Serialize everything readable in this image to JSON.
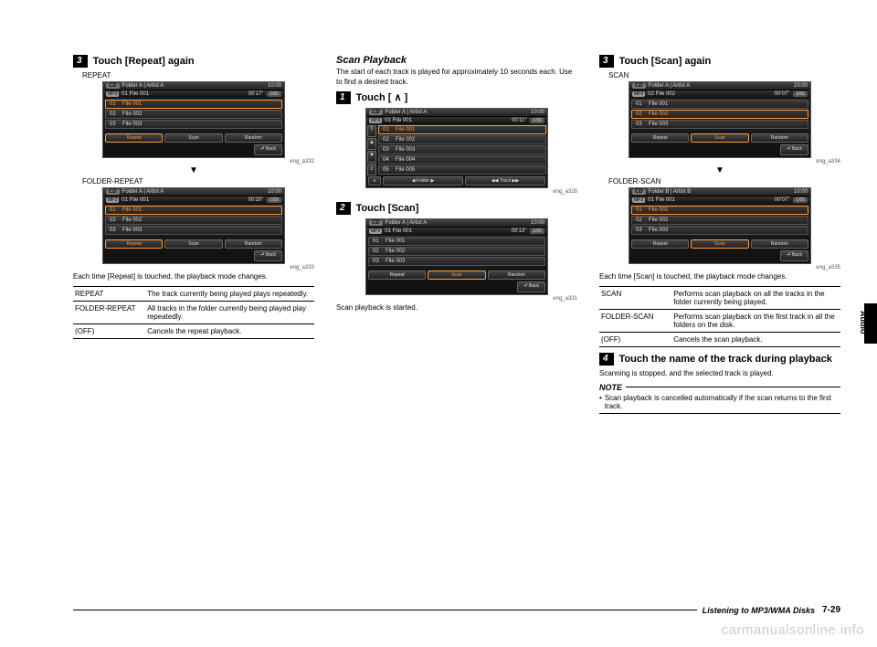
{
  "footer": {
    "section": "Listening to MP3/WMA Disks",
    "page": "7-29"
  },
  "sidetab": "Audio",
  "watermark": "carmanualsonline.info",
  "col1": {
    "step3": {
      "num": "3",
      "title": "Touch [Repeat] again"
    },
    "cap1": "REPEAT",
    "cap2": "FOLDER-REPEAT",
    "ref1": "eng_a332",
    "ref2": "eng_a333",
    "explain": "Each time [Repeat] is touched, the playback mode changes.",
    "table": [
      [
        "REPEAT",
        "The track currently being played plays repeatedly."
      ],
      [
        "FOLDER-REPEAT",
        "All tracks in the folder currently being played play repeatedly."
      ],
      [
        "(OFF)",
        "Cancels the repeat playback."
      ]
    ],
    "screenA": {
      "disc": "CD",
      "mp3": "MP3",
      "folder": "Folder A",
      "artist": "Artist A",
      "nowtrk": "01 File 001",
      "time": "00'17\"",
      "clock": "10:00",
      "mode": "1/55",
      "tracks": [
        [
          "01",
          "File 001"
        ],
        [
          "02",
          "File 002"
        ],
        [
          "03",
          "File 003"
        ]
      ],
      "btns": [
        "Repeat",
        "Scan",
        "Random"
      ],
      "on": 0,
      "back": "Back"
    },
    "screenB": {
      "disc": "CD",
      "mp3": "MP3",
      "folder": "Folder A",
      "artist": "Artist A",
      "nowtrk": "01 File 001",
      "time": "00'20\"",
      "clock": "10:00",
      "mode": "1/55",
      "tracks": [
        [
          "01",
          "File 001"
        ],
        [
          "02",
          "File 002"
        ],
        [
          "03",
          "File 003"
        ]
      ],
      "btns": [
        "Repeat",
        "Scan",
        "Random"
      ],
      "on": 0,
      "back": "Back"
    }
  },
  "col2": {
    "heading": "Scan Playback",
    "intro": "The start of each track is played for approximately 10 seconds each. Use to find a desired track.",
    "step1": {
      "num": "1",
      "title": "Touch [ ∧ ]"
    },
    "ref1": "eng_a328",
    "step2": {
      "num": "2",
      "title": "Touch [Scan]"
    },
    "ref2": "eng_a331",
    "outro": "Scan playback is started.",
    "screenA": {
      "disc": "CD",
      "mp3": "MP3",
      "folder": "Folder A",
      "artist": "Artist A",
      "nowtrk": "01 File 001",
      "time": "00'11\"",
      "clock": "10:00",
      "mode": "1/55",
      "tracks": [
        [
          "01",
          "File 001"
        ],
        [
          "02",
          "File 002"
        ],
        [
          "03",
          "File 003"
        ],
        [
          "04",
          "File 004"
        ],
        [
          "05",
          "File 005"
        ]
      ],
      "footerLabels": [
        "∧",
        "◀ Folder ▶",
        "◀◀ Track ▶▶"
      ]
    },
    "screenB": {
      "disc": "CD",
      "mp3": "MP3",
      "folder": "Folder A",
      "artist": "Artist A",
      "nowtrk": "01 File 001",
      "time": "00'13\"",
      "clock": "10:00",
      "mode": "1/55",
      "tracks": [
        [
          "01",
          "File 001"
        ],
        [
          "02",
          "File 002"
        ],
        [
          "03",
          "File 003"
        ]
      ],
      "btns": [
        "Repeat",
        "Scan",
        "Random"
      ],
      "on": 1,
      "back": "Back"
    }
  },
  "col3": {
    "step3": {
      "num": "3",
      "title": "Touch [Scan] again"
    },
    "cap1": "SCAN",
    "cap2": "FOLDER-SCAN",
    "ref1": "eng_a334",
    "ref2": "eng_a335",
    "explain": "Each time [Scan] is touched, the playback mode changes.",
    "table": [
      [
        "SCAN",
        "Performs scan playback on all the tracks in the folder currently being played."
      ],
      [
        "FOLDER-SCAN",
        "Performs scan playback on the first track in all the folders on the disk."
      ],
      [
        "(OFF)",
        "Cancels the scan playback."
      ]
    ],
    "step4": {
      "num": "4",
      "title": "Touch the name of the track during playback"
    },
    "step4text": "Scanning is stopped, and the selected track is played.",
    "noteTitle": "NOTE",
    "note": "Scan playback is cancelled automatically if the scan returns to the first track.",
    "screenA": {
      "disc": "CD",
      "mp3": "MP3",
      "folder": "Folder A",
      "artist": "Artist A",
      "nowtrk": "02 File 002",
      "time": "00'07\"",
      "clock": "10:00",
      "mode": "1/55",
      "tracks": [
        [
          "01",
          "File 001"
        ],
        [
          "02",
          "File 002"
        ],
        [
          "03",
          "File 003"
        ]
      ],
      "btns": [
        "Repeat",
        "Scan",
        "Random"
      ],
      "on": 1,
      "back": "Back"
    },
    "screenB": {
      "disc": "CD",
      "mp3": "MP3",
      "folder": "Folder B",
      "artist": "Artist B",
      "nowtrk": "01 File 001",
      "time": "00'07\"",
      "clock": "10:00",
      "mode": "1/55",
      "tracks": [
        [
          "01",
          "File 001"
        ],
        [
          "02",
          "File 002"
        ],
        [
          "03",
          "File 003"
        ]
      ],
      "btns": [
        "Repeat",
        "Scan",
        "Random"
      ],
      "on": 1,
      "back": "Back"
    }
  }
}
